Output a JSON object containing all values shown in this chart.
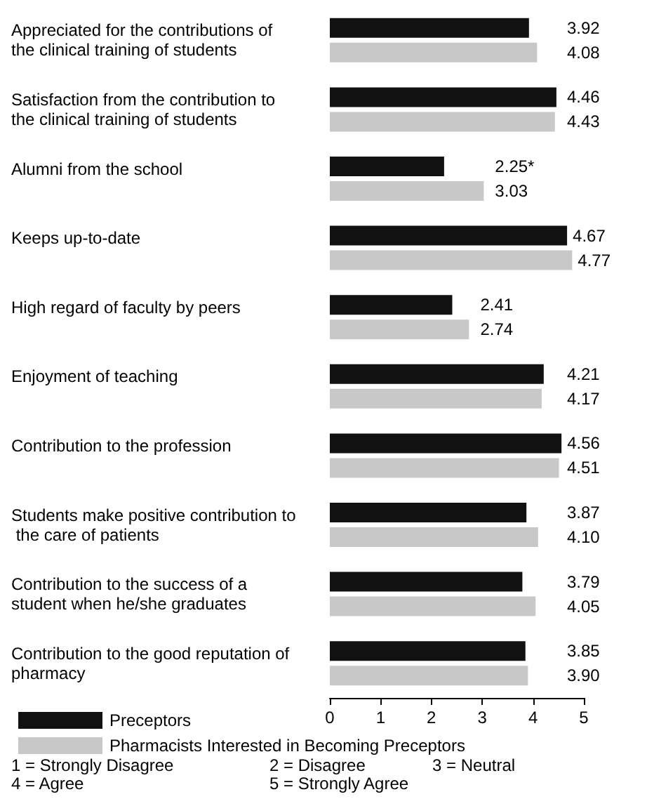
{
  "chart_data": {
    "type": "bar",
    "orientation": "horizontal",
    "categories": [
      "Appreciated for the contributions of the clinical training of students",
      "Satisfaction from the contribution to the clinical training of students",
      "Alumni from the school",
      "Keeps up-to-date",
      "High regard of faculty by peers",
      "Enjoyment of teaching",
      "Contribution to the profession",
      "Students make positive contribution to the care of patients",
      "Contribution to the success of a student when he/she graduates",
      "Contribution to the good reputation of pharmacy"
    ],
    "series": [
      {
        "name": "Preceptors",
        "color": "#111111",
        "values": [
          3.92,
          4.46,
          2.25,
          4.67,
          2.41,
          4.21,
          4.56,
          3.87,
          3.79,
          3.85
        ],
        "value_labels": [
          "3.92",
          "4.46",
          "2.25*",
          "4.67",
          "2.41",
          "4.21",
          "4.56",
          "3.87",
          "3.79",
          "3.85"
        ]
      },
      {
        "name": "Pharmacists Interested in Becoming Preceptors",
        "color": "#c8c8c8",
        "values": [
          4.08,
          4.43,
          3.03,
          4.77,
          2.74,
          4.17,
          4.51,
          4.1,
          4.05,
          3.9
        ],
        "value_labels": [
          "4.08",
          "4.43",
          "3.03",
          "4.77",
          "2.74",
          "4.17",
          "4.51",
          "4.10",
          "4.05",
          "3.90"
        ]
      }
    ],
    "xlim": [
      0,
      5
    ],
    "xticks": [
      0,
      1,
      2,
      3,
      4,
      5
    ],
    "grid": false,
    "legend": "bottom left",
    "annotations": [
      "1 = Strongly Disagree",
      "2 = Disagree",
      "3 = Neutral",
      "4 = Agree",
      "5 = Strongly Agree"
    ]
  }
}
